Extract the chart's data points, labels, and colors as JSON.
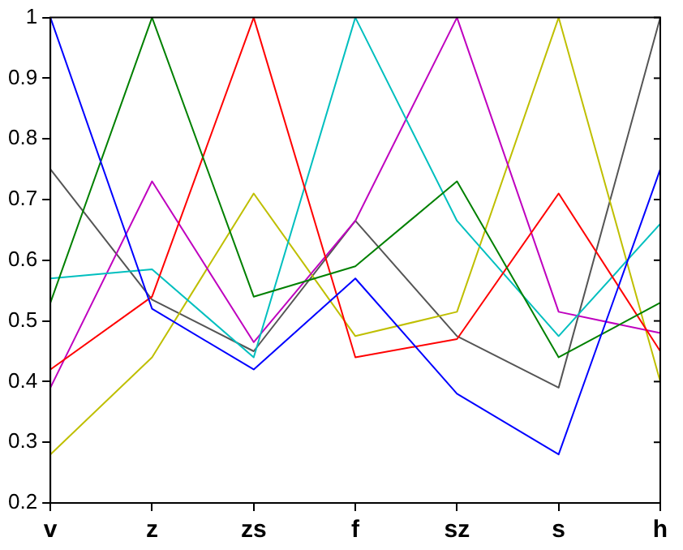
{
  "chart_data": {
    "type": "line",
    "categories": [
      "v",
      "z",
      "zs",
      "f",
      "sz",
      "s",
      "h"
    ],
    "series": [
      {
        "color": "#0000ff",
        "values": [
          1,
          0.52,
          0.42,
          0.57,
          0.38,
          0.28,
          0.75
        ]
      },
      {
        "color": "#008000",
        "values": [
          0.53,
          1,
          0.54,
          0.59,
          0.73,
          0.44,
          0.53
        ]
      },
      {
        "color": "#ff0000",
        "values": [
          0.42,
          0.54,
          1,
          0.44,
          0.47,
          0.71,
          0.45
        ]
      },
      {
        "color": "#00bfbf",
        "values": [
          0.57,
          0.585,
          0.44,
          1,
          0.665,
          0.475,
          0.66
        ]
      },
      {
        "color": "#bf00bf",
        "values": [
          0.39,
          0.73,
          0.465,
          0.665,
          1,
          0.515,
          0.48
        ]
      },
      {
        "color": "#bfbf00",
        "values": [
          0.28,
          0.44,
          0.71,
          0.475,
          0.515,
          1,
          0.4
        ]
      },
      {
        "color": "#555555",
        "values": [
          0.75,
          0.535,
          0.45,
          0.665,
          0.475,
          0.39,
          1
        ]
      }
    ],
    "ylim": [
      0.2,
      1
    ],
    "yticks": [
      0.2,
      0.3,
      0.4,
      0.5,
      0.6,
      0.7,
      0.8,
      0.9,
      1
    ],
    "grid": false,
    "legend": false,
    "marker": "none",
    "line_style": "solid"
  }
}
